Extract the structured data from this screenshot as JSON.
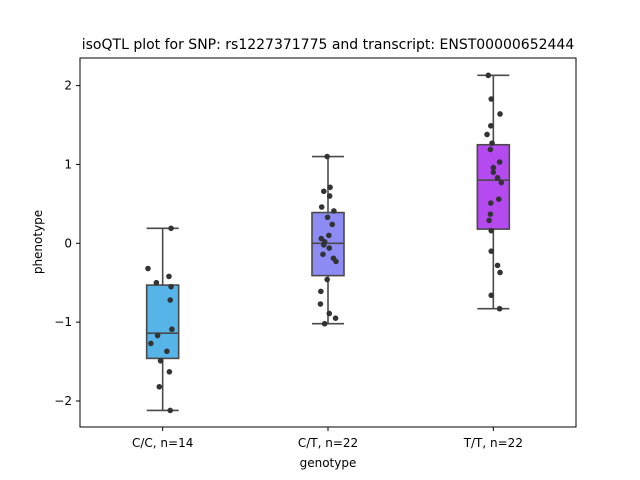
{
  "chart_data": {
    "type": "box",
    "title": "isoQTL plot for SNP: rs1227371775 and transcript: ENST00000652444",
    "xlabel": "genotype",
    "ylabel": "phenotype",
    "ylim": [
      -2.33,
      2.35
    ],
    "yticks": [
      -2,
      -1,
      0,
      1,
      2
    ],
    "ytick_labels": [
      "−2",
      "−1",
      "0",
      "1",
      "2"
    ],
    "grid": false,
    "categories": [
      "C/C, n=14",
      "C/T, n=22",
      "T/T, n=22"
    ],
    "colors": [
      "#56b4e9",
      "#8c8cf4",
      "#b44af0"
    ],
    "boxes": [
      {
        "whisker_low": -2.12,
        "q1": -1.46,
        "median": -1.14,
        "q3": -0.53,
        "whisker_high": 0.19
      },
      {
        "whisker_low": -1.02,
        "q1": -0.41,
        "median": 0.0,
        "q3": 0.39,
        "whisker_high": 1.1
      },
      {
        "whisker_low": -0.83,
        "q1": 0.18,
        "median": 0.8,
        "q3": 1.25,
        "whisker_high": 2.13
      }
    ],
    "points": [
      [
        [
          0.19,
          0.2
        ],
        [
          -0.32,
          -0.35
        ],
        [
          -0.42,
          0.15
        ],
        [
          -0.5,
          -0.15
        ],
        [
          -0.55,
          0.2
        ],
        [
          -0.72,
          0.18
        ],
        [
          -1.09,
          0.22
        ],
        [
          -1.17,
          -0.12
        ],
        [
          -1.27,
          -0.28
        ],
        [
          -1.37,
          0.1
        ],
        [
          -1.49,
          -0.05
        ],
        [
          -1.63,
          0.16
        ],
        [
          -1.82,
          -0.08
        ],
        [
          -2.12,
          0.18
        ]
      ],
      [
        [
          1.1,
          -0.02
        ],
        [
          0.71,
          0.05
        ],
        [
          0.66,
          -0.1
        ],
        [
          0.6,
          0.04
        ],
        [
          0.46,
          -0.15
        ],
        [
          0.41,
          0.14
        ],
        [
          0.33,
          -0.01
        ],
        [
          0.24,
          0.1
        ],
        [
          0.1,
          0.02
        ],
        [
          0.06,
          -0.16
        ],
        [
          0.02,
          -0.08
        ],
        [
          -0.02,
          -0.1
        ],
        [
          -0.06,
          0.03
        ],
        [
          -0.14,
          -0.12
        ],
        [
          -0.19,
          0.13
        ],
        [
          -0.23,
          0.19
        ],
        [
          -0.46,
          -0.02
        ],
        [
          -0.61,
          -0.17
        ],
        [
          -0.77,
          -0.18
        ],
        [
          -0.89,
          0.03
        ],
        [
          -0.95,
          0.18
        ],
        [
          -1.02,
          -0.08
        ]
      ],
      [
        [
          2.13,
          -0.12
        ],
        [
          1.83,
          -0.05
        ],
        [
          1.64,
          0.16
        ],
        [
          1.49,
          -0.06
        ],
        [
          1.38,
          -0.15
        ],
        [
          1.27,
          -0.03
        ],
        [
          1.19,
          -0.07
        ],
        [
          1.03,
          0.15
        ],
        [
          0.96,
          0.0
        ],
        [
          0.9,
          0.0
        ],
        [
          0.83,
          0.1
        ],
        [
          0.77,
          0.19
        ],
        [
          0.56,
          0.13
        ],
        [
          0.51,
          -0.06
        ],
        [
          0.37,
          -0.07
        ],
        [
          0.29,
          -0.1
        ],
        [
          0.16,
          -0.05
        ],
        [
          -0.1,
          -0.05
        ],
        [
          -0.28,
          0.1
        ],
        [
          -0.37,
          0.16
        ],
        [
          -0.66,
          -0.05
        ],
        [
          -0.83,
          0.15
        ]
      ]
    ]
  }
}
